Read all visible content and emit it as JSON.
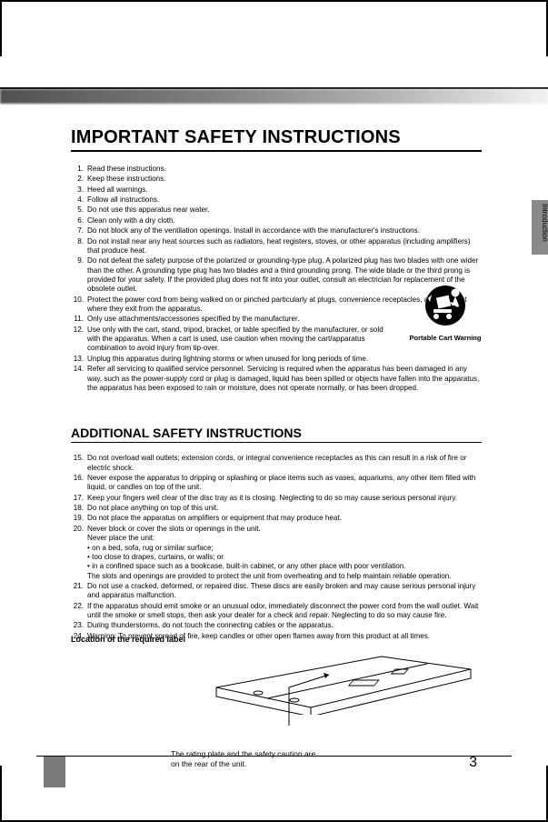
{
  "page_number": "3",
  "side_tab": "Introduction",
  "title1": "IMPORTANT SAFETY INSTRUCTIONS",
  "title2": "ADDITIONAL SAFETY INSTRUCTIONS",
  "cart_label": "Portable Cart Warning",
  "list1": [
    {
      "n": "1.",
      "t": "Read these instructions."
    },
    {
      "n": "2.",
      "t": "Keep these instructions."
    },
    {
      "n": "3.",
      "t": "Heed all warnings."
    },
    {
      "n": "4.",
      "t": "Follow all instructions."
    },
    {
      "n": "5.",
      "t": "Do not use this apparatus near water."
    },
    {
      "n": "6.",
      "t": "Clean only with a dry cloth."
    },
    {
      "n": "7.",
      "t": "Do not block any of the ventilation openings. Install in accordance with the manufacturer's instructions."
    },
    {
      "n": "8.",
      "t": "Do not install near any heat sources such as radiators, heat registers, stoves, or other apparatus (including amplifiers) that produce heat."
    },
    {
      "n": "9.",
      "t": "Do not defeat the safety purpose of the polarized or grounding-type plug. A polarized plug has two blades with one wider than the other. A grounding type plug has two blades and a third grounding prong. The wide blade or the third prong is provided for your safety. If the provided plug does not fit into your outlet, consult an electrician for replacement of the obsolete outlet."
    },
    {
      "n": "10.",
      "t": "Protect the power cord from being walked on or pinched particularly at plugs, convenience receptacles, and the point where they exit from the apparatus."
    },
    {
      "n": "11.",
      "t": "Only use attachments/accessories specified by the manufacturer."
    },
    {
      "n": "12.",
      "t": "Use only with the cart, stand, tripod, bracket, or table specified by the manufacturer, or sold with the apparatus. When a cart is used, use caution when moving the cart/apparatus combination to avoid injury from tip-over.",
      "pad": true
    },
    {
      "n": "13.",
      "t": "Unplug this apparatus during lightning storms or when unused for long periods of time.",
      "pad": true
    },
    {
      "n": "14.",
      "t": "Refer all servicing to qualified service personnel. Servicing is required when the apparatus has been damaged in any way, such as the power-supply cord or plug is damaged, liquid has been spilled or objects have fallen into the apparatus, the apparatus has been exposed to rain or moisture, does not operate normally, or has been dropped."
    }
  ],
  "list2": [
    {
      "n": "15.",
      "t": "Do not overload wall outlets; extension cords, or integral convenience receptacles as this can result in a risk of fire or electric shock."
    },
    {
      "n": "16.",
      "t": "Never expose the apparatus to dripping or splashing or place items such as vases, aquariums, any other item filled with liquid, or candles on top of the unit."
    },
    {
      "n": "17.",
      "t": "Keep your fingers well clear of the disc tray as it is closing. Neglecting to do so may cause serious personal injury."
    },
    {
      "n": "18.",
      "t": "Do not place anything on top of this unit."
    },
    {
      "n": "19.",
      "t": "Do not place the apparatus on amplifiers or equipment that may produce heat."
    },
    {
      "n": "20.",
      "t": "Never block or cover the slots or openings in the unit.\nNever place the unit:\n• on a bed, sofa, rug or similar surface;\n• too close to drapes, curtains, or walls; or\n• in a confined space such as a bookcase, built-in cabinet, or any other place with poor ventilation.\nThe slots and openings are provided to protect the unit from overheating and to help maintain reliable operation."
    },
    {
      "n": "21.",
      "t": "Do not use a cracked, deformed, or repaired disc. These discs are easily broken and may cause serious personal injury and apparatus malfunction."
    },
    {
      "n": "22.",
      "t": "If the apparatus should emit smoke or an unusual odor, immediately disconnect the power cord from the wall outlet. Wait until the smoke or smell stops, then ask your dealer for a check and repair. Neglecting to do so may cause fire."
    },
    {
      "n": "23.",
      "t": "During thunderstorms, do not touch the connecting cables or the apparatus."
    },
    {
      "n": "24.",
      "t": "Warning: To prevent spread of fire, keep candles or other open flames away from this product at all times."
    }
  ],
  "label_title": "Location of the required label",
  "caption_l1": "The rating plate and the safety caution are",
  "caption_l2": "on the rear of the unit.",
  "colors": {
    "text": "#000000",
    "bg": "#ffffff",
    "tab": "#8a8a8a",
    "accent": "#7a7a7a"
  }
}
